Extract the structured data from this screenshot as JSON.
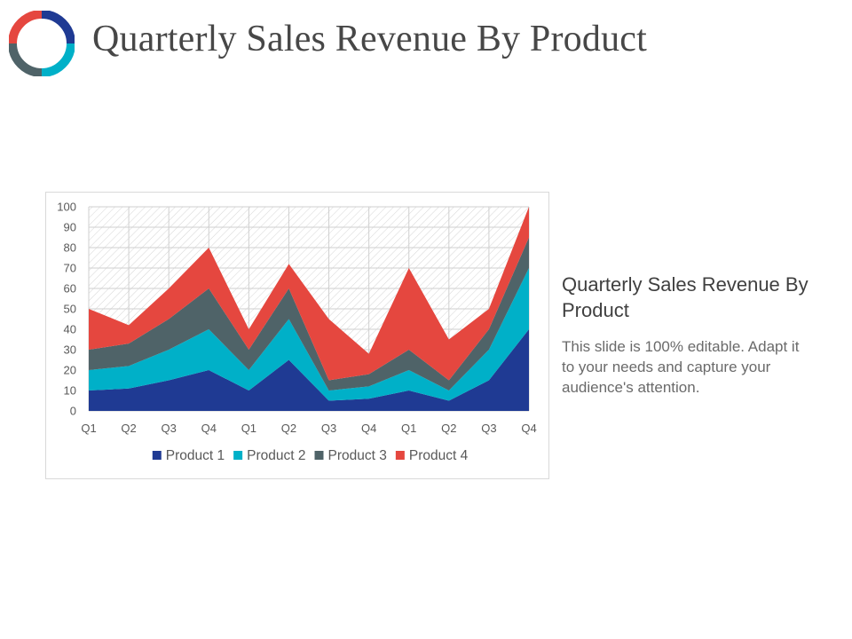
{
  "slide": {
    "title": "Quarterly Sales Revenue By Product",
    "side_heading": "Quarterly Sales Revenue By Product",
    "side_description": "This slide is 100% editable. Adapt it to your needs and capture your audience's attention."
  },
  "logo": {
    "icon": "donut-ring-icon",
    "colors": [
      "#1f3a93",
      "#00b0c8",
      "#4f6368",
      "#e5473f"
    ]
  },
  "chart_data": {
    "type": "area",
    "stacked": true,
    "title": "",
    "xlabel": "",
    "ylabel": "",
    "ylim": [
      0,
      100
    ],
    "yticks": [
      0,
      10,
      20,
      30,
      40,
      50,
      60,
      70,
      80,
      90,
      100
    ],
    "grid": true,
    "legend_position": "bottom",
    "categories": [
      "Q1",
      "Q2",
      "Q3",
      "Q4",
      "Q1",
      "Q2",
      "Q3",
      "Q4",
      "Q1",
      "Q2",
      "Q3",
      "Q4"
    ],
    "series": [
      {
        "name": "Product 1",
        "color": "#1f3a93",
        "values": [
          10,
          11,
          15,
          20,
          10,
          25,
          5,
          6,
          10,
          5,
          15,
          40
        ]
      },
      {
        "name": "Product 2",
        "color": "#00b0c8",
        "values": [
          10,
          11,
          15,
          20,
          10,
          20,
          5,
          6,
          10,
          5,
          15,
          30
        ]
      },
      {
        "name": "Product 3",
        "color": "#4f6368",
        "values": [
          10,
          11,
          15,
          20,
          10,
          15,
          5,
          6,
          10,
          5,
          10,
          15
        ]
      },
      {
        "name": "Product 4",
        "color": "#e5473f",
        "values": [
          20,
          9,
          15,
          20,
          10,
          12,
          30,
          10,
          40,
          20,
          10,
          15
        ]
      }
    ]
  }
}
